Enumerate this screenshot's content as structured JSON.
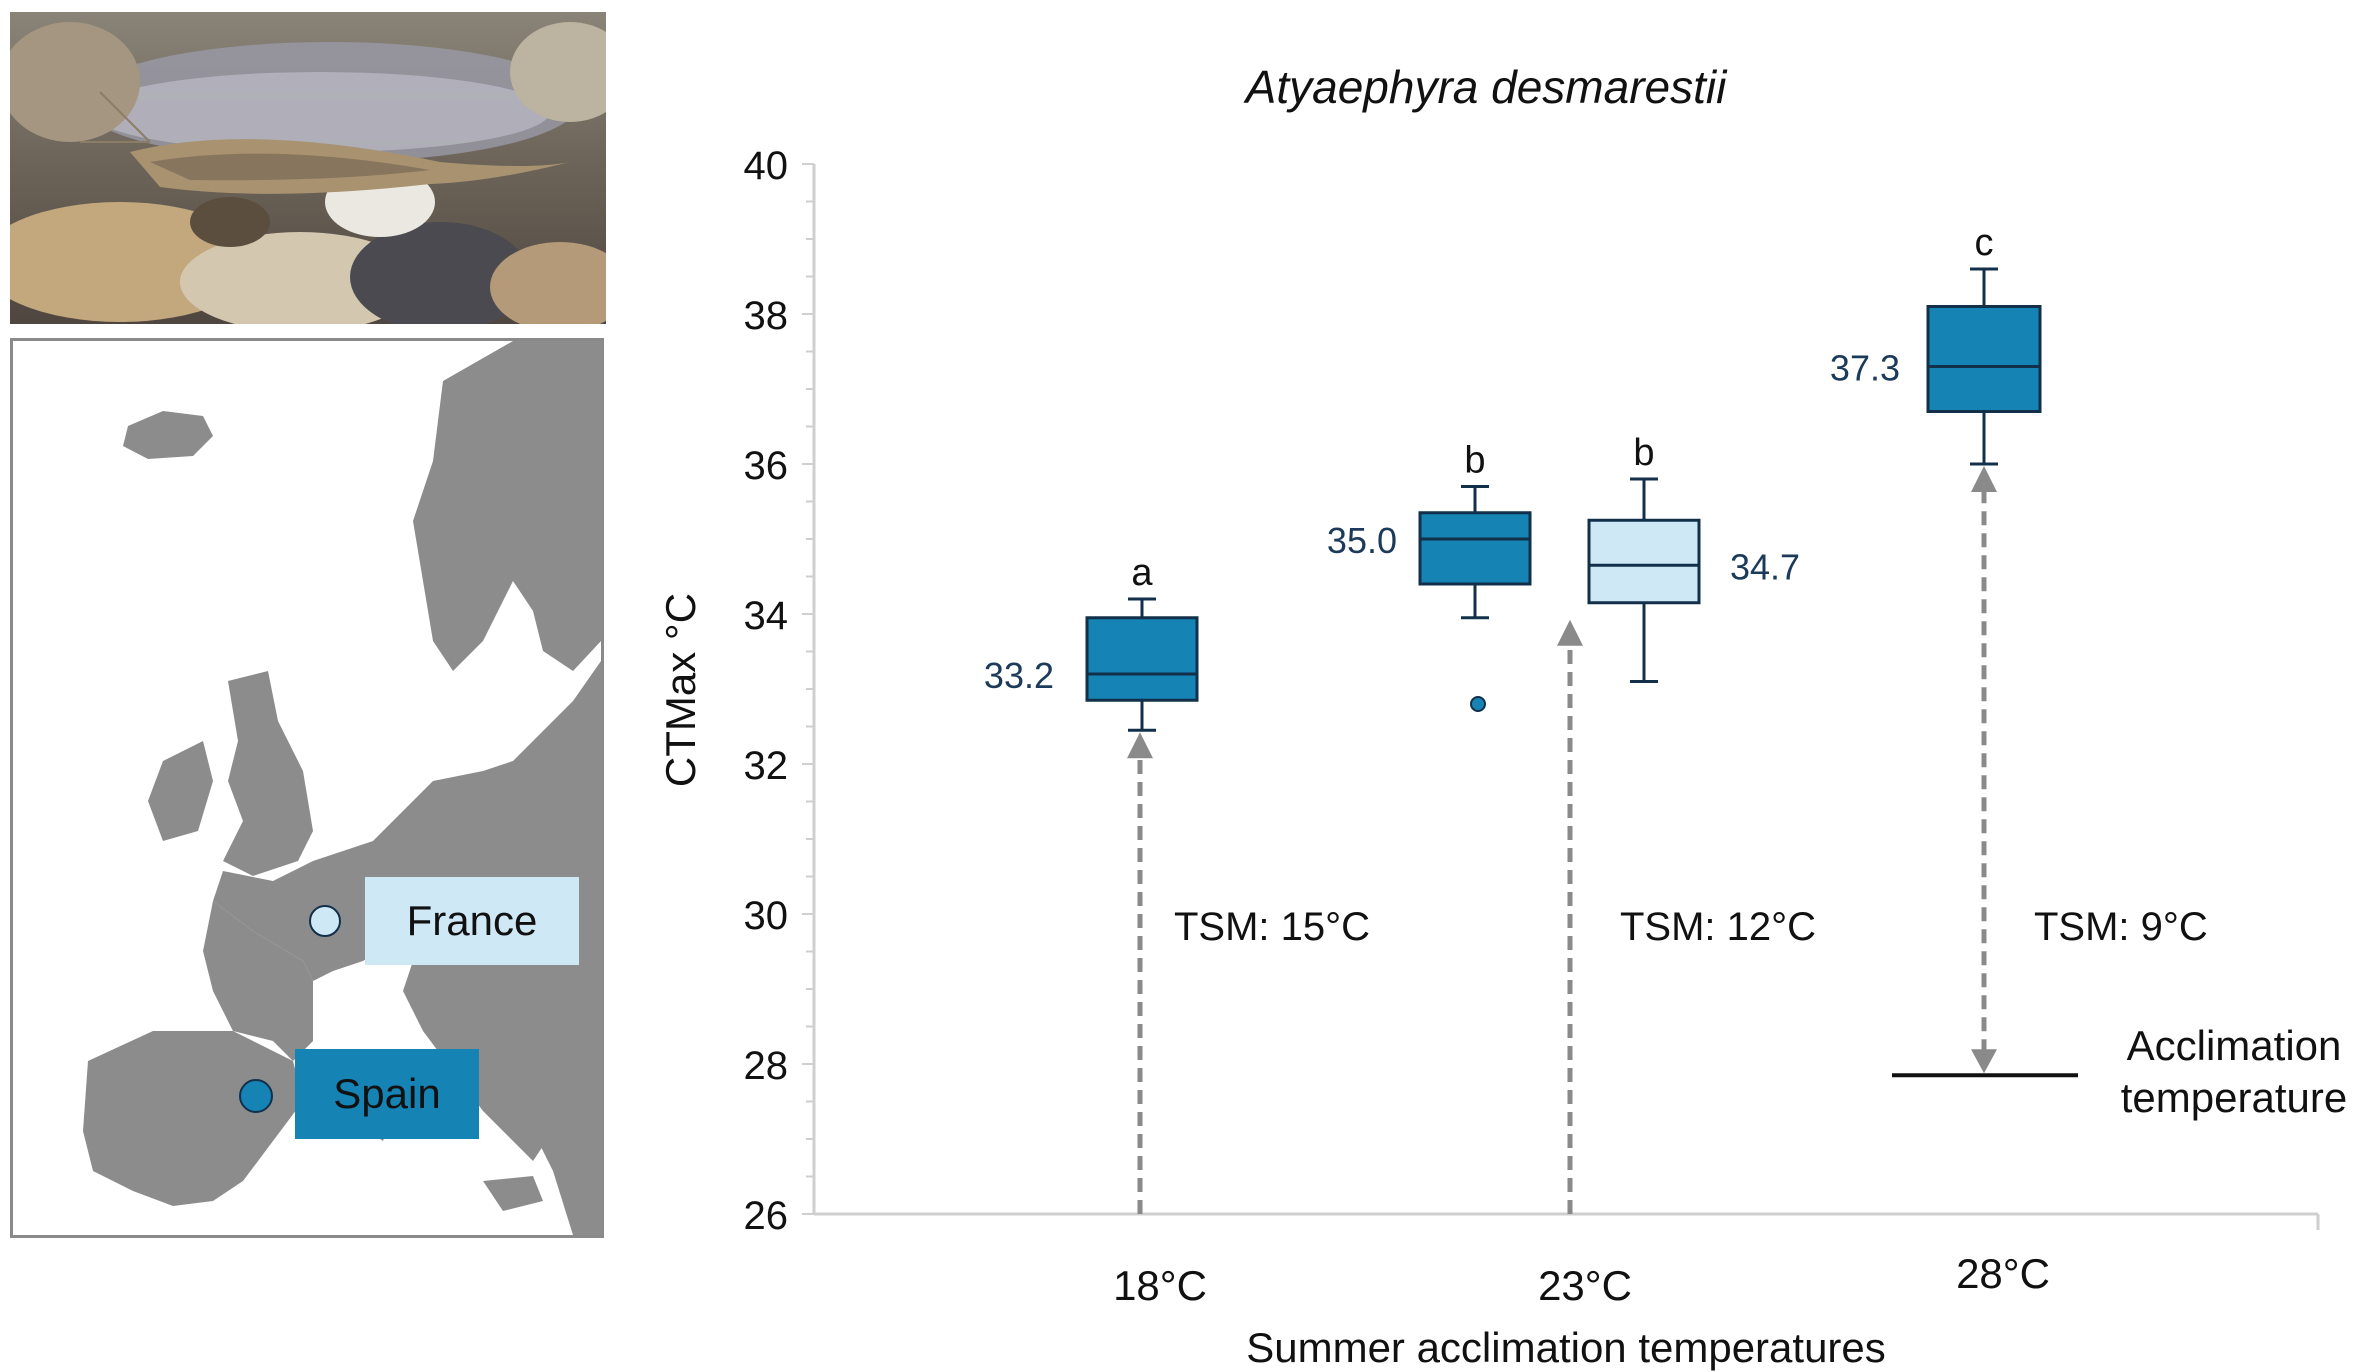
{
  "photo": {
    "subject": "shrimp-photo"
  },
  "map": {
    "land_color": "#8c8c8c",
    "sites": [
      {
        "name": "France",
        "color": "#cfe8f6"
      },
      {
        "name": "Spain",
        "color": "#1583b4"
      }
    ]
  },
  "colors": {
    "spain": "#1583b4",
    "france": "#cfe8f6",
    "stroke": "#13304a",
    "label_text": "#1c3a5a",
    "arrow": "#8a8a8a"
  },
  "chart_data": {
    "type": "box",
    "title": "Atyaephyra desmarestii",
    "ylabel": "CTMax °C",
    "xlabel": "Summer acclimation temperatures",
    "ylim": [
      26,
      40
    ],
    "yticks": [
      26,
      28,
      30,
      32,
      34,
      36,
      38,
      40
    ],
    "categories": [
      "18°C",
      "23°C",
      "28°C"
    ],
    "boxes": [
      {
        "category": "18°C",
        "population": "Spain",
        "min": 32.45,
        "q1": 32.85,
        "median": 33.2,
        "q3": 33.95,
        "max": 34.2,
        "median_label": "33.2",
        "letter": "a",
        "outliers": []
      },
      {
        "category": "23°C",
        "population": "Spain",
        "min": 33.95,
        "q1": 34.4,
        "median": 35.0,
        "q3": 35.35,
        "max": 35.7,
        "median_label": "35.0",
        "letter": "b",
        "outliers": [
          32.8
        ]
      },
      {
        "category": "23°C",
        "population": "France",
        "min": 33.1,
        "q1": 34.15,
        "median": 34.65,
        "q3": 35.25,
        "max": 35.8,
        "median_label": "34.7",
        "letter": "b",
        "outliers": []
      },
      {
        "category": "28°C",
        "population": "Spain",
        "min": 36.0,
        "q1": 36.7,
        "median": 37.3,
        "q3": 38.1,
        "max": 38.6,
        "median_label": "37.3",
        "letter": "c",
        "outliers": []
      }
    ],
    "tsm": [
      {
        "label": "TSM: 15°C",
        "from": 26,
        "to": 32.45,
        "direction": "up"
      },
      {
        "label": "TSM: 12°C",
        "from": 26,
        "to": 33.95,
        "direction": "up"
      },
      {
        "label": "TSM: 9°C",
        "from": 27.85,
        "to": 36.0,
        "direction": "both"
      }
    ],
    "acclimation_line": {
      "value": 27.85,
      "label_line1": "Acclimation",
      "label_line2": "temperature"
    }
  }
}
